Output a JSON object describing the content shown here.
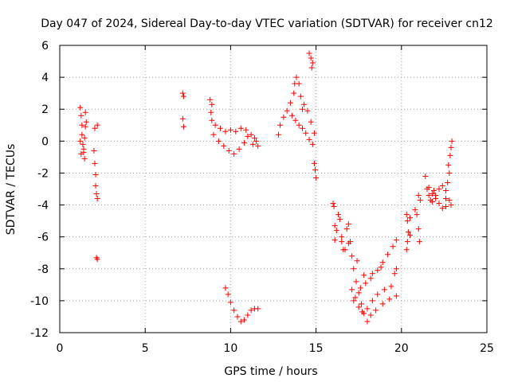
{
  "chart_data": {
    "type": "scatter",
    "title": "Day 047 of 2024, Sidereal Day-to-day VTEC variation (SDTVAR) for receiver cn12",
    "xlabel": "GPS time / hours",
    "ylabel": "SDTVAR / TECUs",
    "xlim": [
      0,
      25
    ],
    "ylim": [
      -12,
      6
    ],
    "xticks": [
      0,
      5,
      10,
      15,
      20,
      25
    ],
    "yticks": [
      -12,
      -10,
      -8,
      -6,
      -4,
      -2,
      0,
      2,
      4,
      6
    ],
    "grid": true,
    "marker": "plus",
    "color": "#ff0000",
    "segments": [
      {
        "name": "seg-1",
        "points": [
          [
            1.2,
            2.1
          ],
          [
            1.25,
            1.6
          ],
          [
            1.3,
            1.0
          ],
          [
            1.3,
            0.4
          ],
          [
            1.35,
            -0.2
          ],
          [
            1.4,
            -0.7
          ],
          [
            1.45,
            -1.1
          ],
          [
            1.5,
            1.8
          ],
          [
            1.5,
            0.9
          ],
          [
            1.45,
            0.2
          ],
          [
            1.4,
            -0.5
          ],
          [
            1.55,
            1.2
          ],
          [
            1.2,
            0.0
          ],
          [
            1.25,
            -0.8
          ]
        ]
      },
      {
        "name": "seg-2",
        "points": [
          [
            2.0,
            -0.6
          ],
          [
            2.05,
            -1.4
          ],
          [
            2.1,
            -2.1
          ],
          [
            2.1,
            -2.8
          ],
          [
            2.15,
            -3.3
          ],
          [
            2.2,
            -3.6
          ],
          [
            2.05,
            0.8
          ],
          [
            2.2,
            1.0
          ],
          [
            2.15,
            -7.3
          ],
          [
            2.2,
            -7.4
          ]
        ]
      },
      {
        "name": "seg-3",
        "points": [
          [
            7.2,
            3.0
          ],
          [
            7.25,
            2.8
          ],
          [
            7.2,
            1.4
          ],
          [
            7.25,
            0.9
          ]
        ]
      },
      {
        "name": "seg-4",
        "points": [
          [
            8.8,
            2.6
          ],
          [
            8.9,
            2.3
          ],
          [
            8.85,
            1.8
          ],
          [
            8.9,
            1.3
          ],
          [
            9.1,
            1.0
          ],
          [
            9.4,
            0.8
          ],
          [
            9.7,
            0.6
          ],
          [
            10.0,
            0.7
          ],
          [
            10.3,
            0.6
          ],
          [
            10.6,
            0.8
          ],
          [
            10.9,
            0.7
          ],
          [
            11.2,
            0.4
          ],
          [
            11.4,
            0.2
          ],
          [
            11.5,
            0.0
          ],
          [
            11.3,
            -0.2
          ],
          [
            9.0,
            0.4
          ],
          [
            9.3,
            0.0
          ],
          [
            9.6,
            -0.3
          ],
          [
            9.9,
            -0.6
          ],
          [
            10.2,
            -0.8
          ],
          [
            10.5,
            -0.5
          ],
          [
            10.8,
            -0.1
          ],
          [
            11.0,
            0.3
          ],
          [
            11.6,
            -0.3
          ]
        ]
      },
      {
        "name": "seg-5",
        "points": [
          [
            9.7,
            -9.2
          ],
          [
            9.85,
            -9.6
          ],
          [
            10.0,
            -10.1
          ],
          [
            10.2,
            -10.6
          ],
          [
            10.4,
            -11.0
          ],
          [
            10.6,
            -11.3
          ],
          [
            10.8,
            -11.2
          ],
          [
            11.0,
            -10.9
          ],
          [
            11.2,
            -10.6
          ],
          [
            11.4,
            -10.5
          ],
          [
            11.6,
            -10.5
          ]
        ]
      },
      {
        "name": "seg-6",
        "points": [
          [
            12.8,
            0.4
          ],
          [
            12.9,
            1.0
          ],
          [
            13.1,
            1.5
          ],
          [
            13.3,
            1.9
          ],
          [
            13.5,
            2.4
          ],
          [
            13.7,
            3.0
          ],
          [
            13.75,
            3.6
          ],
          [
            13.85,
            4.0
          ],
          [
            14.0,
            3.6
          ],
          [
            14.1,
            2.8
          ],
          [
            14.2,
            2.0
          ],
          [
            13.6,
            1.6
          ],
          [
            13.8,
            1.3
          ],
          [
            14.0,
            1.0
          ],
          [
            14.2,
            0.8
          ],
          [
            14.4,
            0.5
          ],
          [
            14.6,
            0.1
          ],
          [
            14.8,
            -0.2
          ],
          [
            14.3,
            2.3
          ],
          [
            14.5,
            1.9
          ],
          [
            14.7,
            1.2
          ],
          [
            14.9,
            0.5
          ],
          [
            14.6,
            5.5
          ],
          [
            14.7,
            5.2
          ],
          [
            14.8,
            4.9
          ],
          [
            14.75,
            4.6
          ]
        ]
      },
      {
        "name": "seg-7",
        "points": [
          [
            14.9,
            -1.4
          ],
          [
            14.95,
            -1.8
          ],
          [
            15.0,
            -2.3
          ]
        ]
      },
      {
        "name": "seg-8",
        "points": [
          [
            16.0,
            -3.9
          ],
          [
            16.05,
            -4.1
          ],
          [
            16.1,
            -5.3
          ],
          [
            16.2,
            -5.6
          ],
          [
            16.1,
            -6.2
          ],
          [
            16.3,
            -4.6
          ],
          [
            16.4,
            -4.9
          ],
          [
            16.5,
            -6.3
          ],
          [
            16.6,
            -6.8
          ],
          [
            16.5,
            -6.0
          ],
          [
            16.8,
            -5.5
          ],
          [
            16.9,
            -6.4
          ],
          [
            16.7,
            -6.8
          ]
        ]
      },
      {
        "name": "seg-9",
        "points": [
          [
            16.9,
            -5.2
          ],
          [
            17.0,
            -6.3
          ],
          [
            17.1,
            -7.2
          ],
          [
            17.2,
            -8.0
          ],
          [
            17.35,
            -8.8
          ],
          [
            17.5,
            -9.5
          ],
          [
            17.65,
            -10.2
          ],
          [
            17.8,
            -10.8
          ],
          [
            18.0,
            -11.3
          ],
          [
            18.2,
            -10.9
          ],
          [
            18.5,
            -10.6
          ],
          [
            18.9,
            -10.2
          ],
          [
            19.3,
            -9.9
          ],
          [
            19.7,
            -9.7
          ],
          [
            17.3,
            -9.8
          ],
          [
            17.5,
            -10.4
          ],
          [
            17.7,
            -10.7
          ],
          [
            18.0,
            -10.5
          ],
          [
            18.3,
            -10.0
          ],
          [
            18.6,
            -9.6
          ],
          [
            19.0,
            -9.3
          ],
          [
            19.4,
            -9.1
          ],
          [
            17.6,
            -9.2
          ],
          [
            17.9,
            -8.9
          ],
          [
            18.2,
            -8.6
          ],
          [
            18.6,
            -8.1
          ],
          [
            18.9,
            -7.6
          ],
          [
            19.2,
            -7.1
          ],
          [
            19.5,
            -6.6
          ],
          [
            19.7,
            -6.2
          ],
          [
            17.4,
            -7.5
          ],
          [
            17.8,
            -8.4
          ],
          [
            18.3,
            -8.3
          ],
          [
            18.8,
            -7.9
          ],
          [
            19.6,
            -8.3
          ],
          [
            19.7,
            -8.0
          ],
          [
            17.1,
            -9.3
          ],
          [
            17.2,
            -10.0
          ]
        ]
      },
      {
        "name": "seg-10",
        "points": [
          [
            20.3,
            -4.6
          ],
          [
            20.35,
            -5.0
          ],
          [
            20.4,
            -5.7
          ],
          [
            20.35,
            -6.3
          ],
          [
            20.3,
            -6.8
          ],
          [
            20.5,
            -4.8
          ],
          [
            20.5,
            -5.9
          ],
          [
            20.8,
            -4.3
          ],
          [
            20.9,
            -4.6
          ],
          [
            21.0,
            -5.5
          ],
          [
            21.05,
            -6.3
          ],
          [
            21.0,
            -3.4
          ],
          [
            21.1,
            -3.7
          ]
        ]
      },
      {
        "name": "seg-11",
        "points": [
          [
            21.4,
            -2.2
          ],
          [
            21.5,
            -3.0
          ],
          [
            21.6,
            -3.4
          ],
          [
            21.7,
            -3.7
          ],
          [
            21.8,
            -3.3
          ],
          [
            21.9,
            -3.1
          ],
          [
            22.0,
            -3.6
          ],
          [
            22.2,
            -3.9
          ],
          [
            22.4,
            -4.2
          ],
          [
            22.6,
            -4.1
          ],
          [
            22.2,
            -3.0
          ],
          [
            22.4,
            -2.8
          ],
          [
            21.6,
            -2.9
          ],
          [
            21.8,
            -3.8
          ],
          [
            22.0,
            -3.4
          ],
          [
            22.6,
            -3.1
          ],
          [
            22.7,
            -2.6
          ],
          [
            22.8,
            -2.0
          ],
          [
            22.75,
            -1.5
          ],
          [
            22.85,
            -0.9
          ],
          [
            22.9,
            -0.4
          ],
          [
            22.95,
            0.0
          ],
          [
            22.8,
            -3.7
          ],
          [
            22.9,
            -4.0
          ],
          [
            22.6,
            -3.6
          ]
        ]
      }
    ]
  }
}
